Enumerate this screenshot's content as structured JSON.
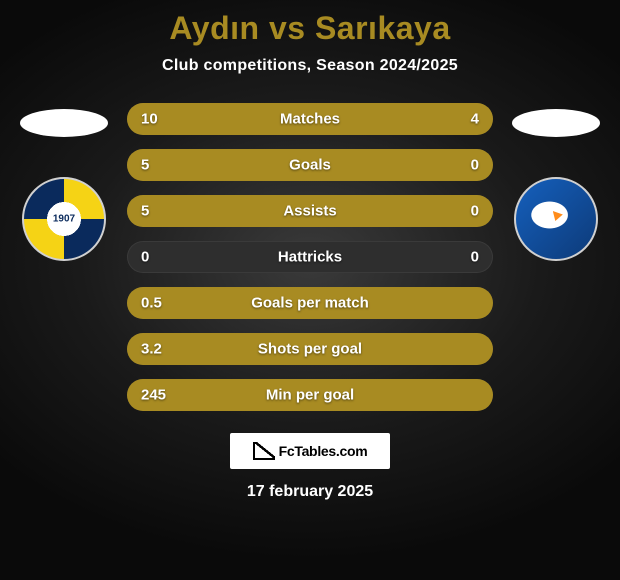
{
  "title": {
    "text": "Aydın vs Sarıkaya",
    "color": "#a88b22",
    "fontsize": 32
  },
  "subtitle": {
    "text": "Club competitions, Season 2024/2025",
    "color": "#ffffff",
    "fontsize": 16
  },
  "colors": {
    "left_bar": "#a88b22",
    "right_bar": "#a88b22",
    "track": "#2e2e2e",
    "text": "#ffffff",
    "background_center": "#3a3a3a",
    "background_edge": "#0a0a0a"
  },
  "bar_style": {
    "height": 32,
    "radius": 16,
    "gap": 14,
    "label_fontsize": 15,
    "value_fontsize": 15
  },
  "stats": [
    {
      "label": "Matches",
      "left_value": "10",
      "right_value": "4",
      "left_pct": 71,
      "right_pct": 29
    },
    {
      "label": "Goals",
      "left_value": "5",
      "right_value": "0",
      "left_pct": 100,
      "right_pct": 0
    },
    {
      "label": "Assists",
      "left_value": "5",
      "right_value": "0",
      "left_pct": 100,
      "right_pct": 0
    },
    {
      "label": "Hattricks",
      "left_value": "0",
      "right_value": "0",
      "left_pct": 0,
      "right_pct": 0
    },
    {
      "label": "Goals per match",
      "left_value": "0.5",
      "right_value": "",
      "left_pct": 100,
      "right_pct": 0
    },
    {
      "label": "Shots per goal",
      "left_value": "3.2",
      "right_value": "",
      "left_pct": 100,
      "right_pct": 0
    },
    {
      "label": "Min per goal",
      "left_value": "245",
      "right_value": "",
      "left_pct": 100,
      "right_pct": 0
    }
  ],
  "footer": {
    "logo_text": "FcTables.com",
    "date": "17 february 2025"
  },
  "teams": {
    "left": {
      "crest_name": "fenerbahce-crest"
    },
    "right": {
      "crest_name": "erzurumspor-crest"
    }
  }
}
